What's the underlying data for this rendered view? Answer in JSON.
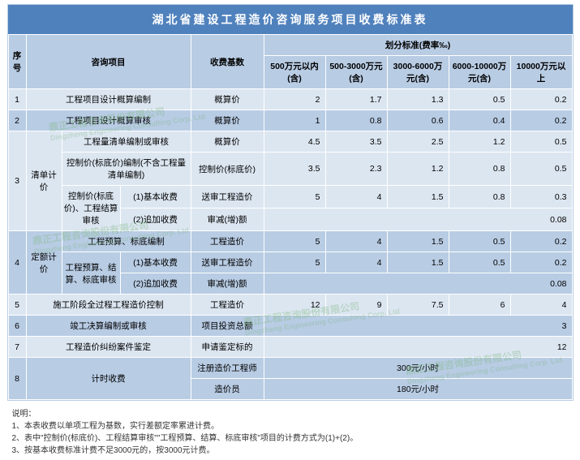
{
  "title": "湖北省建设工程造价咨询服务项目收费标准表",
  "headers": {
    "seq": "序号",
    "item": "咨询项目",
    "base": "收费基数",
    "rate_group": "划分标准(费率‰)",
    "rates": [
      "500万元以内(含)",
      "500-3000万元(含)",
      "3000-6000万元(含)",
      "6000-10000万元(含)",
      "10000万元以上"
    ]
  },
  "rows": [
    {
      "seq": "1",
      "item": "工程项目设计概算编制",
      "base": "概算价",
      "r": [
        "2",
        "1.7",
        "1.3",
        "0.5",
        "0.2"
      ],
      "cls": "row-odd"
    },
    {
      "seq": "2",
      "item": "工程项目设计概算审核",
      "base": "概算价",
      "r": [
        "1",
        "0.8",
        "0.6",
        "0.4",
        "0.2"
      ],
      "cls": "row-even"
    }
  ],
  "group3": {
    "seq": "3",
    "name": "清单计价",
    "cls": "row-odd",
    "sub": [
      {
        "label": "工程量清单编制或审核",
        "base": "概算价",
        "r": [
          "4.5",
          "3.5",
          "2.5",
          "1.2",
          "0.5"
        ]
      },
      {
        "label": "控制价(标底价)编制(不含工程量清单编制)",
        "base": "控制价(标底价)",
        "r": [
          "3.5",
          "2.3",
          "1.2",
          "0.8",
          "0.5"
        ]
      },
      {
        "merge_label": "控制价(标底价)、工程结算审核",
        "sub_label": "(1)基本收费",
        "base": "送审工程造价",
        "r": [
          "5",
          "4",
          "1.5",
          "0.8",
          "0.3"
        ]
      },
      {
        "sub_label": "(2)追加收费",
        "base": "审减(增)额",
        "r_merge": "0.08",
        "r_align": "right"
      }
    ]
  },
  "group4": {
    "seq": "4",
    "name": "定额计价",
    "cls": "row-even",
    "sub": [
      {
        "label": "工程预算、标底编制",
        "base": "工程造价",
        "r": [
          "5",
          "4",
          "1.5",
          "0.5",
          "0.2"
        ]
      },
      {
        "merge_label": "工程预算、结算、标底审核",
        "sub_label": "(1)基本收费",
        "base": "送审工程造价",
        "r": [
          "5",
          "4",
          "1.5",
          "0.5",
          "0.2"
        ]
      },
      {
        "sub_label": "(2)追加收费",
        "base": "审减(增)额",
        "r_merge": "0.08",
        "r_align": "right"
      }
    ]
  },
  "rows2": [
    {
      "seq": "5",
      "item": "施工阶段全过程工程造价控制",
      "base": "工程造价",
      "r": [
        "12",
        "9",
        "7.5",
        "6",
        "4"
      ],
      "cls": "row-odd"
    },
    {
      "seq": "6",
      "item": "竣工决算编制或审核",
      "base": "项目投资总额",
      "r_merge": "3",
      "r_align": "right",
      "cls": "row-even"
    },
    {
      "seq": "7",
      "item": "工程造价纠纷案件鉴定",
      "base": "申请鉴定标的",
      "r_merge": "12",
      "r_align": "right",
      "cls": "row-odd"
    }
  ],
  "group8": {
    "seq": "8",
    "name": "计时收费",
    "cls": "row-even",
    "sub": [
      {
        "base": "注册造价工程师",
        "val": "300元/小时"
      },
      {
        "base": "造价员",
        "val": "180元/小时"
      }
    ]
  },
  "notes_title": "说明：",
  "notes": [
    "1、本表收费以单项工程为基数，实行差额定率累进计费。",
    "2、表中\"控制价(标底价)、工程结算审核\"\"工程预算、结算、标底审核\"项目的计费方式为(1)+(2)。",
    "3、按基本收费标准计费不足3000元的，按3000元计费。"
  ],
  "watermark": {
    "main": "鼎正工程咨询股份有限公司",
    "sub": "Dingzheng Engineering Consulting Corp. Ltd"
  },
  "colors": {
    "header_bg": "#4f81bd",
    "th_bg": "#b8cce4",
    "odd_bg": "#dce6f1",
    "even_bg": "#b8cce4"
  }
}
